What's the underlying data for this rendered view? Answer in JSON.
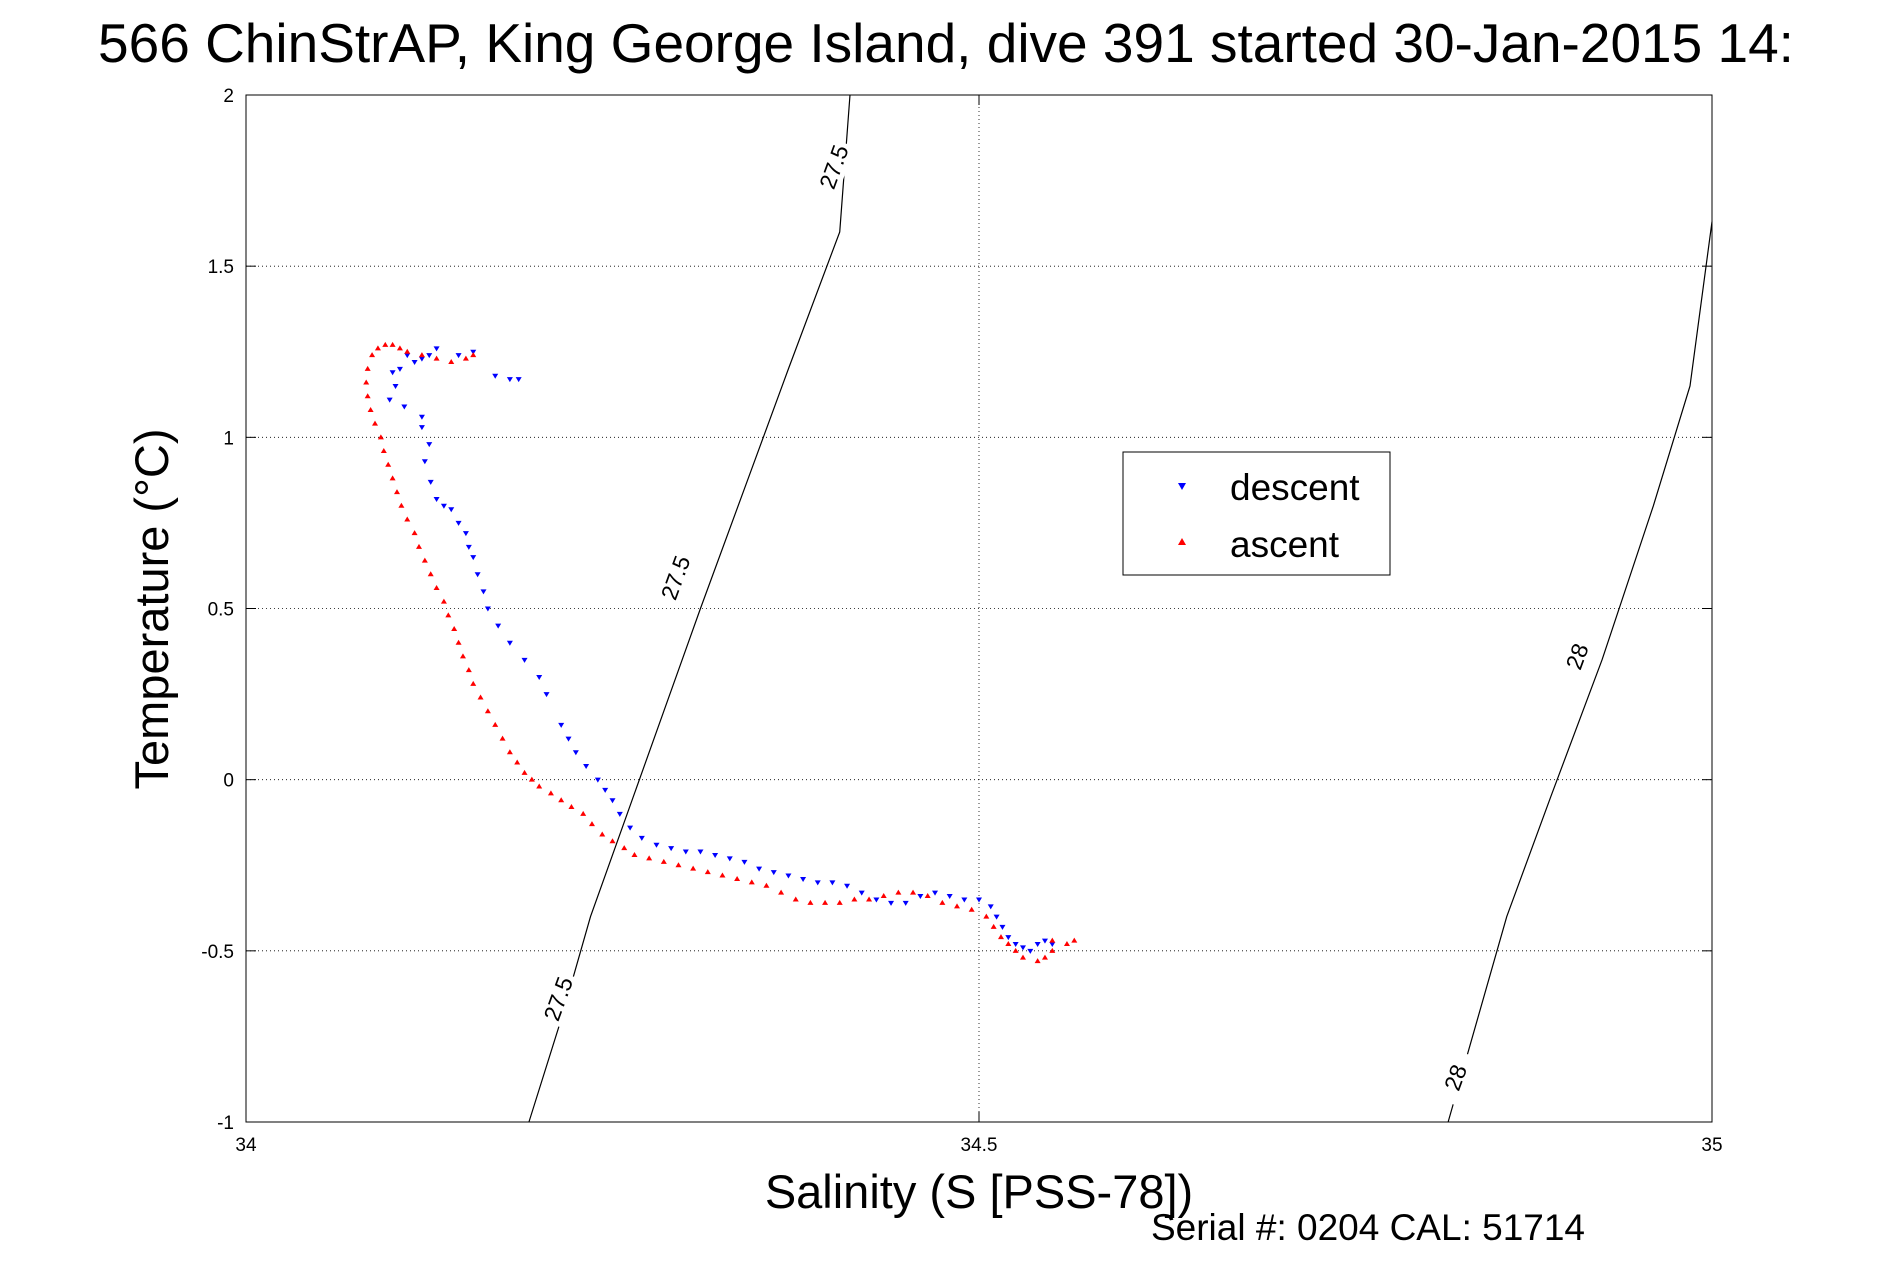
{
  "chart_data": {
    "type": "scatter",
    "title": "566 ChinStrAP, King George Island, dive 391 started 30-Jan-2015 14:",
    "xlabel": "Salinity (S [PSS-78])",
    "ylabel": "Temperature (°C)",
    "xlim": [
      34,
      35
    ],
    "ylim": [
      -1,
      2
    ],
    "xticks": [
      34,
      34.5,
      35
    ],
    "xtick_labels": [
      "34",
      "34.5",
      "35"
    ],
    "yticks": [
      -1,
      -0.5,
      0,
      0.5,
      1,
      1.5,
      2
    ],
    "ytick_labels": [
      "-1",
      "-0.5",
      "0",
      "0.5",
      "1",
      "1.5",
      "2"
    ],
    "grid": true,
    "legend_position": "center-right",
    "footer": "Serial #: 0204  CAL: 51714",
    "series": [
      {
        "name": "descent",
        "color": "#0000ff",
        "marker": "triangle-down",
        "points": [
          [
            34.186,
            1.17
          ],
          [
            34.18,
            1.17
          ],
          [
            34.17,
            1.18
          ],
          [
            34.155,
            1.25
          ],
          [
            34.145,
            1.24
          ],
          [
            34.13,
            1.26
          ],
          [
            34.125,
            1.24
          ],
          [
            34.12,
            1.23
          ],
          [
            34.115,
            1.22
          ],
          [
            34.11,
            1.24
          ],
          [
            34.105,
            1.2
          ],
          [
            34.1,
            1.19
          ],
          [
            34.102,
            1.15
          ],
          [
            34.098,
            1.11
          ],
          [
            34.108,
            1.09
          ],
          [
            34.12,
            1.06
          ],
          [
            34.12,
            1.03
          ],
          [
            34.125,
            0.98
          ],
          [
            34.122,
            0.93
          ],
          [
            34.126,
            0.87
          ],
          [
            34.13,
            0.82
          ],
          [
            34.135,
            0.8
          ],
          [
            34.14,
            0.79
          ],
          [
            34.145,
            0.75
          ],
          [
            34.15,
            0.72
          ],
          [
            34.152,
            0.68
          ],
          [
            34.155,
            0.65
          ],
          [
            34.158,
            0.6
          ],
          [
            34.162,
            0.55
          ],
          [
            34.165,
            0.5
          ],
          [
            34.172,
            0.45
          ],
          [
            34.18,
            0.4
          ],
          [
            34.19,
            0.35
          ],
          [
            34.2,
            0.3
          ],
          [
            34.205,
            0.25
          ],
          [
            34.215,
            0.16
          ],
          [
            34.22,
            0.12
          ],
          [
            34.225,
            0.08
          ],
          [
            34.232,
            0.04
          ],
          [
            34.24,
            0.0
          ],
          [
            34.245,
            -0.03
          ],
          [
            34.25,
            -0.06
          ],
          [
            34.255,
            -0.1
          ],
          [
            34.262,
            -0.14
          ],
          [
            34.27,
            -0.17
          ],
          [
            34.28,
            -0.19
          ],
          [
            34.29,
            -0.2
          ],
          [
            34.3,
            -0.21
          ],
          [
            34.31,
            -0.21
          ],
          [
            34.32,
            -0.22
          ],
          [
            34.33,
            -0.23
          ],
          [
            34.34,
            -0.24
          ],
          [
            34.35,
            -0.26
          ],
          [
            34.36,
            -0.27
          ],
          [
            34.37,
            -0.28
          ],
          [
            34.38,
            -0.29
          ],
          [
            34.39,
            -0.3
          ],
          [
            34.4,
            -0.3
          ],
          [
            34.41,
            -0.31
          ],
          [
            34.42,
            -0.33
          ],
          [
            34.43,
            -0.35
          ],
          [
            34.44,
            -0.36
          ],
          [
            34.45,
            -0.36
          ],
          [
            34.46,
            -0.34
          ],
          [
            34.47,
            -0.33
          ],
          [
            34.48,
            -0.34
          ],
          [
            34.49,
            -0.35
          ],
          [
            34.5,
            -0.35
          ],
          [
            34.508,
            -0.37
          ],
          [
            34.512,
            -0.4
          ],
          [
            34.516,
            -0.43
          ],
          [
            34.52,
            -0.46
          ],
          [
            34.525,
            -0.48
          ],
          [
            34.53,
            -0.49
          ],
          [
            34.535,
            -0.5
          ],
          [
            34.54,
            -0.48
          ],
          [
            34.545,
            -0.47
          ],
          [
            34.55,
            -0.48
          ]
        ]
      },
      {
        "name": "ascent",
        "color": "#ff0000",
        "marker": "triangle-up",
        "points": [
          [
            34.55,
            -0.47
          ],
          [
            34.55,
            -0.5
          ],
          [
            34.545,
            -0.52
          ],
          [
            34.54,
            -0.53
          ],
          [
            34.53,
            -0.52
          ],
          [
            34.525,
            -0.5
          ],
          [
            34.52,
            -0.48
          ],
          [
            34.515,
            -0.46
          ],
          [
            34.51,
            -0.43
          ],
          [
            34.505,
            -0.4
          ],
          [
            34.495,
            -0.38
          ],
          [
            34.485,
            -0.37
          ],
          [
            34.475,
            -0.36
          ],
          [
            34.465,
            -0.34
          ],
          [
            34.455,
            -0.33
          ],
          [
            34.445,
            -0.33
          ],
          [
            34.435,
            -0.34
          ],
          [
            34.425,
            -0.35
          ],
          [
            34.415,
            -0.35
          ],
          [
            34.405,
            -0.36
          ],
          [
            34.395,
            -0.36
          ],
          [
            34.385,
            -0.36
          ],
          [
            34.375,
            -0.35
          ],
          [
            34.365,
            -0.33
          ],
          [
            34.355,
            -0.31
          ],
          [
            34.345,
            -0.3
          ],
          [
            34.335,
            -0.29
          ],
          [
            34.325,
            -0.28
          ],
          [
            34.315,
            -0.27
          ],
          [
            34.305,
            -0.26
          ],
          [
            34.295,
            -0.25
          ],
          [
            34.285,
            -0.24
          ],
          [
            34.275,
            -0.23
          ],
          [
            34.265,
            -0.22
          ],
          [
            34.258,
            -0.2
          ],
          [
            34.25,
            -0.18
          ],
          [
            34.243,
            -0.16
          ],
          [
            34.236,
            -0.13
          ],
          [
            34.23,
            -0.1
          ],
          [
            34.222,
            -0.08
          ],
          [
            34.215,
            -0.06
          ],
          [
            34.208,
            -0.04
          ],
          [
            34.2,
            -0.02
          ],
          [
            34.195,
            0.0
          ],
          [
            34.19,
            0.02
          ],
          [
            34.185,
            0.05
          ],
          [
            34.18,
            0.08
          ],
          [
            34.175,
            0.12
          ],
          [
            34.17,
            0.16
          ],
          [
            34.165,
            0.2
          ],
          [
            34.16,
            0.24
          ],
          [
            34.155,
            0.28
          ],
          [
            34.152,
            0.32
          ],
          [
            34.148,
            0.36
          ],
          [
            34.145,
            0.4
          ],
          [
            34.142,
            0.44
          ],
          [
            34.138,
            0.48
          ],
          [
            34.135,
            0.52
          ],
          [
            34.13,
            0.56
          ],
          [
            34.126,
            0.6
          ],
          [
            34.122,
            0.64
          ],
          [
            34.118,
            0.68
          ],
          [
            34.115,
            0.72
          ],
          [
            34.11,
            0.76
          ],
          [
            34.106,
            0.8
          ],
          [
            34.103,
            0.84
          ],
          [
            34.1,
            0.88
          ],
          [
            34.097,
            0.92
          ],
          [
            34.094,
            0.96
          ],
          [
            34.092,
            1.0
          ],
          [
            34.088,
            1.04
          ],
          [
            34.085,
            1.08
          ],
          [
            34.083,
            1.12
          ],
          [
            34.082,
            1.16
          ],
          [
            34.083,
            1.2
          ],
          [
            34.086,
            1.24
          ],
          [
            34.09,
            1.26
          ],
          [
            34.095,
            1.27
          ],
          [
            34.1,
            1.27
          ],
          [
            34.105,
            1.26
          ],
          [
            34.11,
            1.25
          ],
          [
            34.12,
            1.24
          ],
          [
            34.13,
            1.23
          ],
          [
            34.14,
            1.22
          ],
          [
            34.15,
            1.23
          ],
          [
            34.155,
            1.24
          ],
          [
            34.56,
            -0.48
          ],
          [
            34.565,
            -0.47
          ]
        ]
      }
    ],
    "density_contours": [
      {
        "level": "27.5",
        "line": [
          [
            34.193,
            -1.0
          ],
          [
            34.215,
            -0.7
          ],
          [
            34.235,
            -0.4
          ],
          [
            34.26,
            -0.1
          ],
          [
            34.285,
            0.2
          ],
          [
            34.31,
            0.5
          ],
          [
            34.34,
            0.85
          ],
          [
            34.37,
            1.2
          ],
          [
            34.405,
            1.6
          ],
          [
            34.412,
            2.0
          ]
        ],
        "labels": [
          {
            "text": "27.5",
            "x": 34.213,
            "y": -0.64
          },
          {
            "text": "27.5",
            "x": 34.293,
            "y": 0.59
          },
          {
            "text": "27.5",
            "x": 34.401,
            "y": 1.79
          }
        ]
      },
      {
        "level": "28",
        "line": [
          [
            34.82,
            -1.0
          ],
          [
            34.84,
            -0.7
          ],
          [
            34.86,
            -0.4
          ],
          [
            34.89,
            -0.05
          ],
          [
            34.925,
            0.35
          ],
          [
            34.96,
            0.8
          ],
          [
            34.985,
            1.15
          ],
          [
            35.0,
            1.63
          ]
        ],
        "labels": [
          {
            "text": "28",
            "x": 34.825,
            "y": -0.87
          },
          {
            "text": "28",
            "x": 34.908,
            "y": 0.36
          }
        ]
      }
    ]
  }
}
